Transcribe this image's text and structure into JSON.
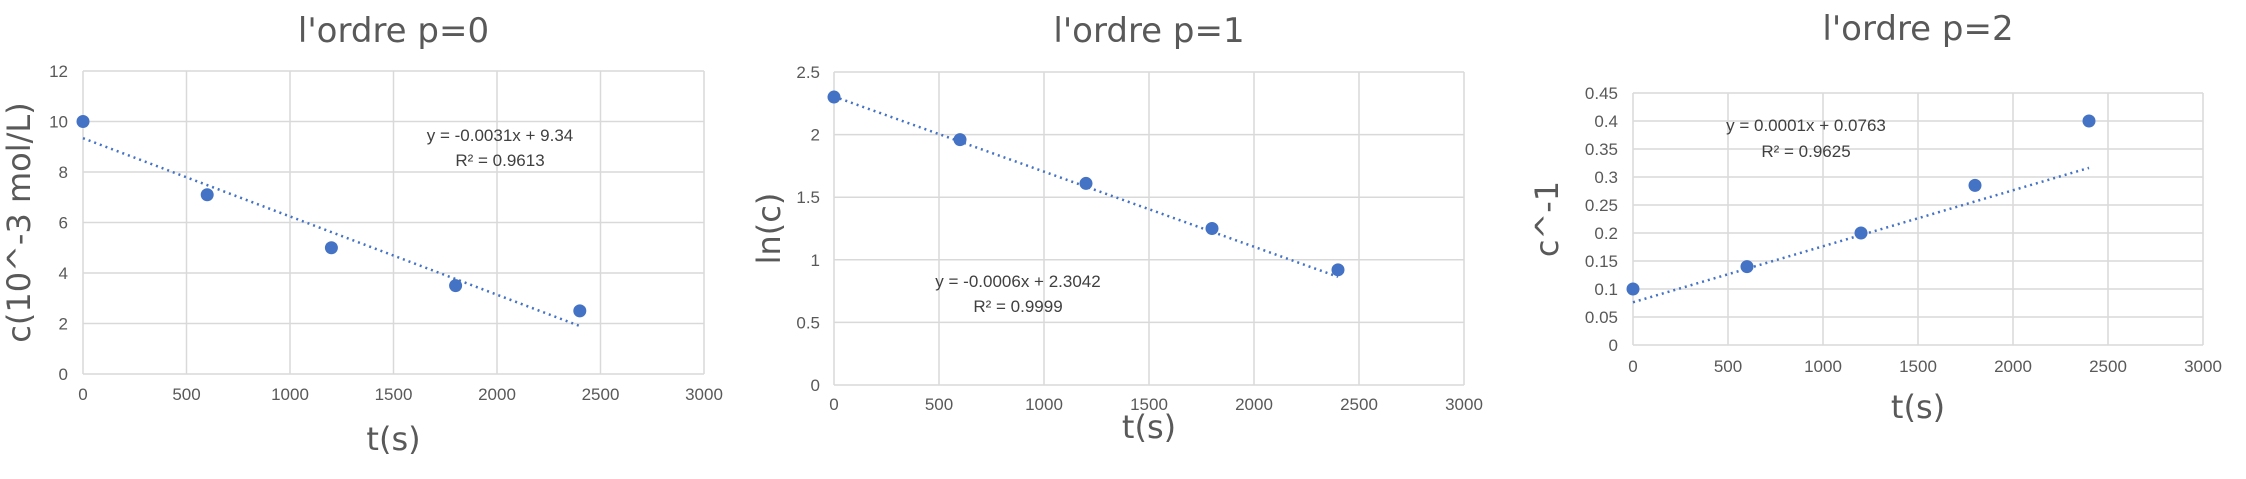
{
  "chart_data": [
    {
      "type": "scatter",
      "title": "l'ordre p=0",
      "xlabel": "t(s)",
      "ylabel": "c(10^-3 mol/L)",
      "xlim": [
        0,
        3000
      ],
      "ylim": [
        0,
        12
      ],
      "xticks": [
        0,
        500,
        1000,
        1500,
        2000,
        2500,
        3000
      ],
      "yticks": [
        0,
        2,
        4,
        6,
        8,
        10,
        12
      ],
      "grid": true,
      "series": [
        {
          "x": [
            0,
            600,
            1200,
            1800,
            2400
          ],
          "y": [
            10,
            7.1,
            5.0,
            3.5,
            2.5
          ]
        }
      ],
      "trendline": {
        "slope": -0.0031,
        "intercept": 9.34,
        "x_range": [
          0,
          2400
        ]
      },
      "annotation": {
        "equation": "y = -0.0031x + 9.34",
        "r2": "R² = 0.9613"
      }
    },
    {
      "type": "scatter",
      "title": "l'ordre p=1",
      "xlabel": "t(s)",
      "ylabel": "ln(c)",
      "xlim": [
        0,
        3000
      ],
      "ylim": [
        0,
        2.5
      ],
      "xticks": [
        0,
        500,
        1000,
        1500,
        2000,
        2500,
        3000
      ],
      "yticks": [
        0,
        0.5,
        1,
        1.5,
        2,
        2.5
      ],
      "grid": true,
      "series": [
        {
          "x": [
            0,
            600,
            1200,
            1800,
            2400
          ],
          "y": [
            2.3,
            1.96,
            1.61,
            1.25,
            0.92
          ]
        }
      ],
      "trendline": {
        "slope": -0.0006,
        "intercept": 2.3042,
        "x_range": [
          0,
          2400
        ]
      },
      "annotation": {
        "equation": "y = -0.0006x + 2.3042",
        "r2": "R² = 0.9999"
      }
    },
    {
      "type": "scatter",
      "title": "l'ordre p=2",
      "xlabel": "t(s)",
      "ylabel": "c^-1",
      "xlim": [
        0,
        3000
      ],
      "ylim": [
        0,
        0.45
      ],
      "xticks": [
        0,
        500,
        1000,
        1500,
        2000,
        2500,
        3000
      ],
      "yticks": [
        0,
        0.05,
        0.1,
        0.15,
        0.2,
        0.25,
        0.3,
        0.35,
        0.4,
        0.45
      ],
      "grid": true,
      "series": [
        {
          "x": [
            0,
            600,
            1200,
            1800,
            2400
          ],
          "y": [
            0.1,
            0.14,
            0.2,
            0.285,
            0.4
          ]
        }
      ],
      "trendline": {
        "slope": 0.0001,
        "intercept": 0.0763,
        "x_range": [
          0,
          2400
        ]
      },
      "annotation": {
        "equation": "y = 0.0001x + 0.0763",
        "r2": "R² = 0.9625"
      }
    }
  ],
  "colors": {
    "marker": "#4472c4",
    "grid": "#d9d9d9",
    "text": "#595959"
  }
}
